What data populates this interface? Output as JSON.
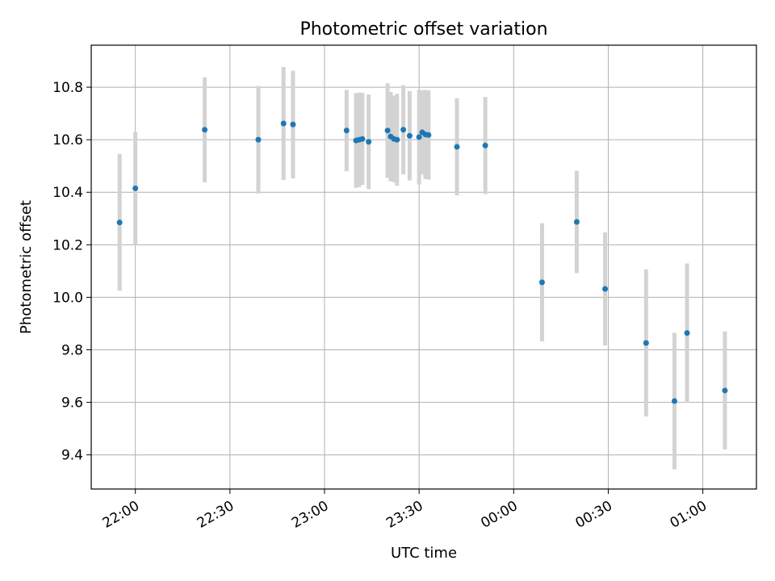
{
  "chart_data": {
    "type": "scatter",
    "title": "Photometric offset variation",
    "xlabel": "UTC time",
    "ylabel": "Photometric offset",
    "xlim": [
      "21:46",
      "01:17"
    ],
    "ylim": [
      9.27,
      10.96
    ],
    "x_ticks": [
      "22:00",
      "22:30",
      "23:00",
      "23:30",
      "00:00",
      "00:30",
      "01:00"
    ],
    "y_ticks": [
      "9.4",
      "9.6",
      "9.8",
      "10.0",
      "10.2",
      "10.4",
      "10.6",
      "10.8"
    ],
    "grid": true,
    "colors": {
      "points": "#1f77b4",
      "errorbars": "#d3d3d3",
      "grid": "#b0b0b0"
    },
    "points": [
      {
        "x": "21:55",
        "y": 10.285,
        "yerr": 0.26
      },
      {
        "x": "22:00",
        "y": 10.415,
        "yerr": 0.215
      },
      {
        "x": "22:22",
        "y": 10.638,
        "yerr": 0.2
      },
      {
        "x": "22:39",
        "y": 10.6,
        "yerr": 0.205
      },
      {
        "x": "22:47",
        "y": 10.662,
        "yerr": 0.215
      },
      {
        "x": "22:50",
        "y": 10.658,
        "yerr": 0.205
      },
      {
        "x": "23:07",
        "y": 10.635,
        "yerr": 0.155
      },
      {
        "x": "23:10",
        "y": 10.597,
        "yerr": 0.18
      },
      {
        "x": "23:11",
        "y": 10.6,
        "yerr": 0.18
      },
      {
        "x": "23:12",
        "y": 10.603,
        "yerr": 0.175
      },
      {
        "x": "23:14",
        "y": 10.592,
        "yerr": 0.18
      },
      {
        "x": "23:20",
        "y": 10.635,
        "yerr": 0.18
      },
      {
        "x": "23:21",
        "y": 10.612,
        "yerr": 0.17
      },
      {
        "x": "23:22",
        "y": 10.603,
        "yerr": 0.165
      },
      {
        "x": "23:23",
        "y": 10.6,
        "yerr": 0.175
      },
      {
        "x": "23:25",
        "y": 10.638,
        "yerr": 0.17
      },
      {
        "x": "23:27",
        "y": 10.615,
        "yerr": 0.17
      },
      {
        "x": "23:30",
        "y": 10.61,
        "yerr": 0.18
      },
      {
        "x": "23:31",
        "y": 10.628,
        "yerr": 0.16
      },
      {
        "x": "23:32",
        "y": 10.62,
        "yerr": 0.17
      },
      {
        "x": "23:33",
        "y": 10.618,
        "yerr": 0.17
      },
      {
        "x": "23:42",
        "y": 10.573,
        "yerr": 0.185
      },
      {
        "x": "23:51",
        "y": 10.578,
        "yerr": 0.185
      },
      {
        "x": "00:09",
        "y": 10.057,
        "yerr": 0.225
      },
      {
        "x": "00:20",
        "y": 10.287,
        "yerr": 0.195
      },
      {
        "x": "00:29",
        "y": 10.032,
        "yerr": 0.215
      },
      {
        "x": "00:42",
        "y": 9.826,
        "yerr": 0.28
      },
      {
        "x": "00:51",
        "y": 9.605,
        "yerr": 0.26
      },
      {
        "x": "00:55",
        "y": 9.864,
        "yerr": 0.265
      },
      {
        "x": "01:07",
        "y": 9.645,
        "yerr": 0.225
      }
    ]
  }
}
